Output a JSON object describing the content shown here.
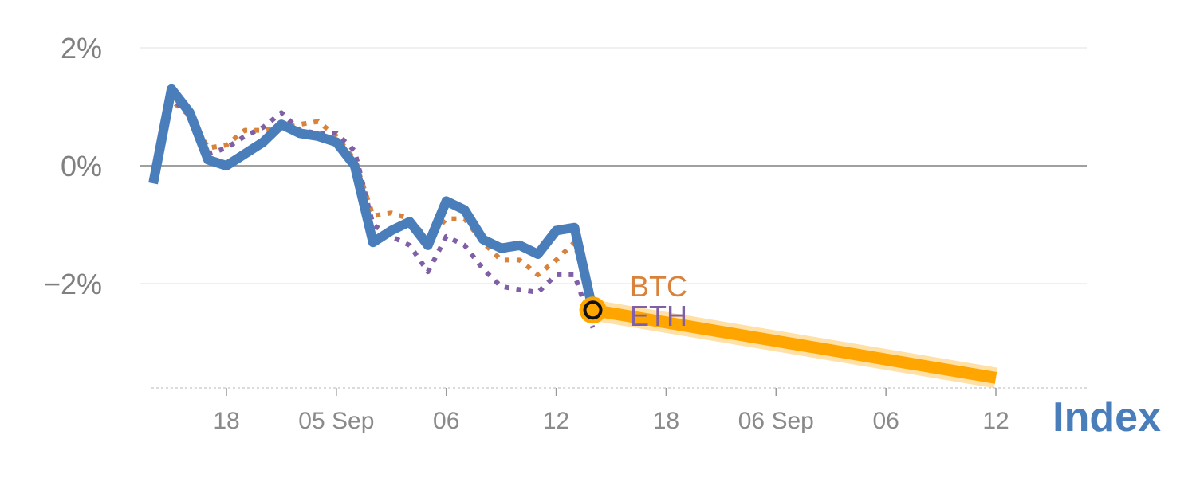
{
  "colors": {
    "index": "#4a7ebb",
    "btc": "#d9823b",
    "eth": "#7f5fa5",
    "forecast": "#ffa500",
    "grid": "#e6e6e6",
    "zero_line": "#808080",
    "tick_text": "#8a8a8a"
  },
  "chart_data": {
    "type": "line",
    "title": "",
    "xlabel": "",
    "ylabel": "",
    "ylim": [
      -3.8,
      2.3
    ],
    "y_ticks": [
      {
        "value": 2,
        "label": "2%"
      },
      {
        "value": 0,
        "label": "0%"
      },
      {
        "value": -2,
        "label": "−2%"
      }
    ],
    "x_ticks": [
      {
        "hour": 18,
        "label": "18"
      },
      {
        "hour": 24,
        "label": "05 Sep"
      },
      {
        "hour": 30,
        "label": "06"
      },
      {
        "hour": 36,
        "label": "12"
      },
      {
        "hour": 42,
        "label": "18"
      },
      {
        "hour": 48,
        "label": "06 Sep"
      },
      {
        "hour": 54,
        "label": "06"
      },
      {
        "hour": 60,
        "label": "12"
      }
    ],
    "series": [
      {
        "name": "Index",
        "key": "index",
        "style": "solid",
        "points": [
          [
            14,
            -0.3
          ],
          [
            15,
            1.3
          ],
          [
            16,
            0.9
          ],
          [
            17,
            0.1
          ],
          [
            18,
            0.0
          ],
          [
            19,
            0.2
          ],
          [
            20,
            0.4
          ],
          [
            21,
            0.7
          ],
          [
            22,
            0.55
          ],
          [
            23,
            0.5
          ],
          [
            24,
            0.4
          ],
          [
            25,
            0.0
          ],
          [
            26,
            -1.3
          ],
          [
            27,
            -1.1
          ],
          [
            28,
            -0.95
          ],
          [
            29,
            -1.35
          ],
          [
            30,
            -0.6
          ],
          [
            31,
            -0.75
          ],
          [
            32,
            -1.25
          ],
          [
            33,
            -1.4
          ],
          [
            34,
            -1.35
          ],
          [
            35,
            -1.5
          ],
          [
            36,
            -1.1
          ],
          [
            37,
            -1.05
          ],
          [
            38,
            -2.45
          ]
        ]
      },
      {
        "name": "BTC",
        "key": "btc",
        "style": "dotted",
        "points": [
          [
            14,
            -0.2
          ],
          [
            15,
            1.1
          ],
          [
            16,
            0.85
          ],
          [
            17,
            0.3
          ],
          [
            18,
            0.35
          ],
          [
            19,
            0.6
          ],
          [
            20,
            0.6
          ],
          [
            21,
            0.65
          ],
          [
            22,
            0.7
          ],
          [
            23,
            0.75
          ],
          [
            24,
            0.5
          ],
          [
            25,
            0.1
          ],
          [
            26,
            -0.85
          ],
          [
            27,
            -0.8
          ],
          [
            28,
            -0.9
          ],
          [
            29,
            -1.25
          ],
          [
            30,
            -0.9
          ],
          [
            31,
            -0.9
          ],
          [
            32,
            -1.3
          ],
          [
            33,
            -1.6
          ],
          [
            34,
            -1.6
          ],
          [
            35,
            -1.85
          ],
          [
            36,
            -1.6
          ],
          [
            37,
            -1.3
          ],
          [
            38,
            -2.4
          ]
        ]
      },
      {
        "name": "ETH",
        "key": "eth",
        "style": "dotted",
        "points": [
          [
            14,
            -0.1
          ],
          [
            15,
            1.15
          ],
          [
            16,
            0.85
          ],
          [
            17,
            0.2
          ],
          [
            18,
            0.3
          ],
          [
            19,
            0.5
          ],
          [
            20,
            0.65
          ],
          [
            21,
            0.9
          ],
          [
            22,
            0.6
          ],
          [
            23,
            0.55
          ],
          [
            24,
            0.55
          ],
          [
            25,
            0.25
          ],
          [
            26,
            -1.0
          ],
          [
            27,
            -1.2
          ],
          [
            28,
            -1.35
          ],
          [
            29,
            -1.8
          ],
          [
            30,
            -1.2
          ],
          [
            31,
            -1.35
          ],
          [
            32,
            -1.75
          ],
          [
            33,
            -2.05
          ],
          [
            34,
            -2.1
          ],
          [
            35,
            -2.15
          ],
          [
            36,
            -1.85
          ],
          [
            37,
            -1.85
          ],
          [
            38,
            -2.75
          ]
        ]
      },
      {
        "name": "forecast",
        "key": "forecast",
        "style": "band",
        "points": [
          [
            38,
            -2.45
          ],
          [
            60,
            -3.6
          ]
        ]
      }
    ],
    "marker": {
      "hour": 38,
      "value": -2.45
    },
    "end_labels": [
      {
        "key": "btc",
        "text": "BTC"
      },
      {
        "key": "eth",
        "text": "ETH"
      }
    ],
    "corner_label": "Index",
    "grid": true,
    "legend": "none"
  }
}
